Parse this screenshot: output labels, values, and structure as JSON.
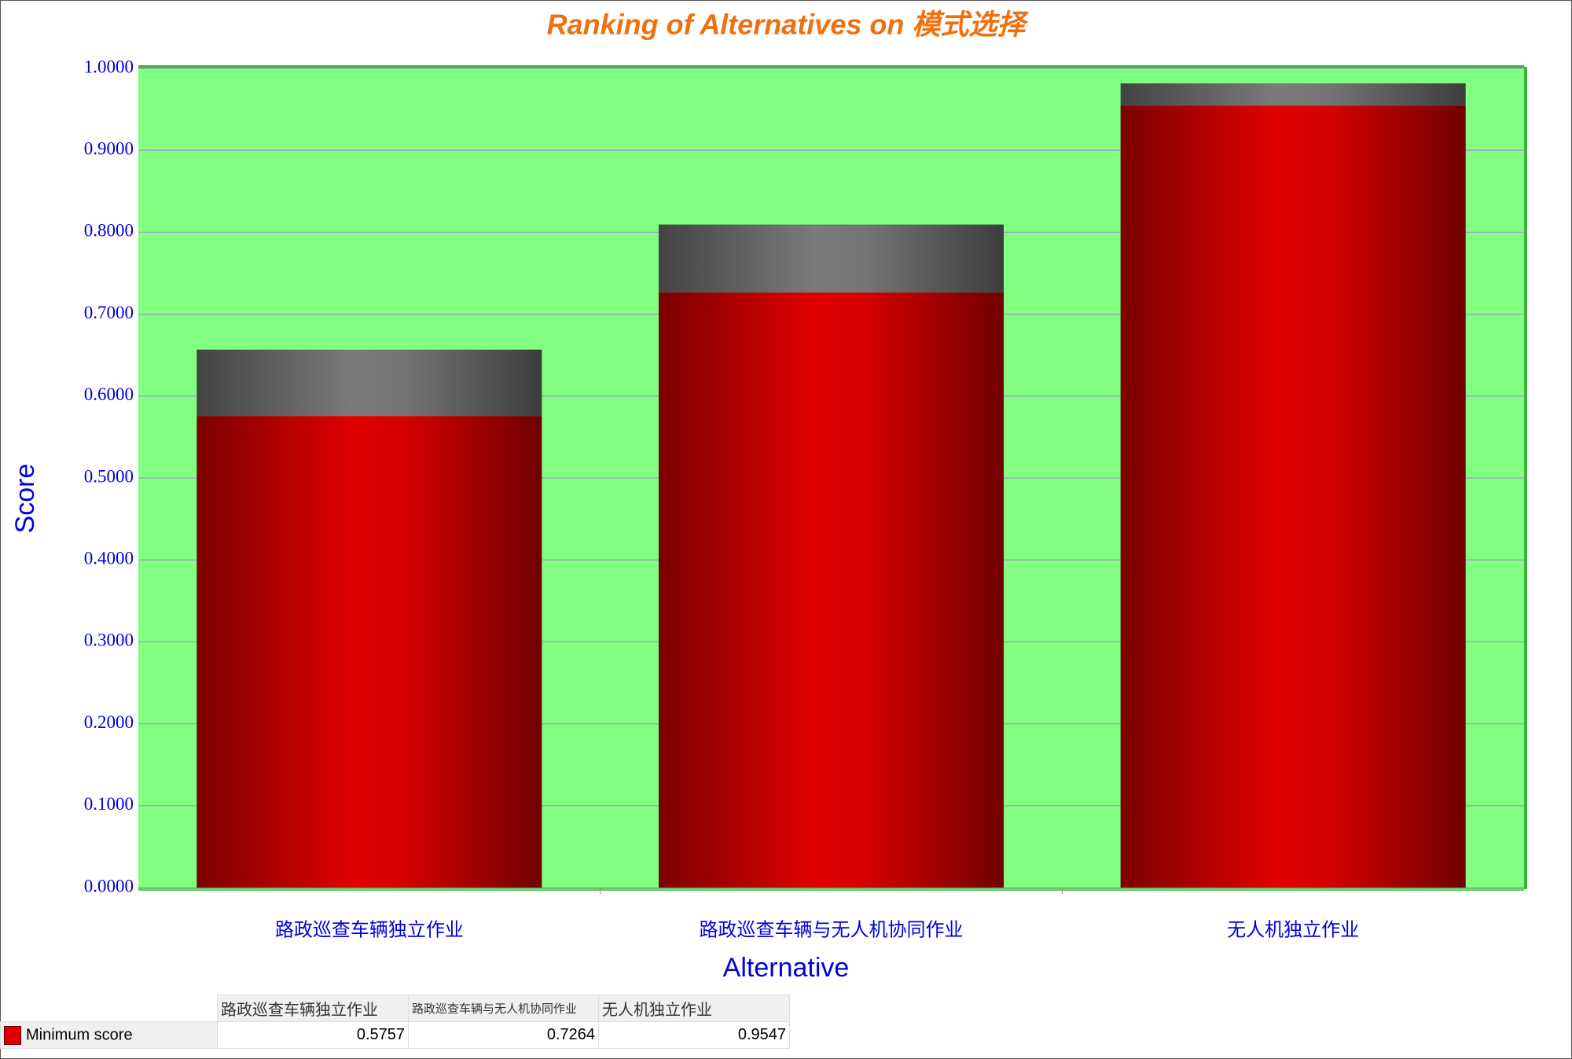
{
  "chart_data": {
    "type": "bar",
    "title": "Ranking of Alternatives on 模式选择",
    "x_label": "Alternative",
    "y_label": "Score",
    "categories": [
      "路政巡查车辆独立作业",
      "路政巡查车辆与无人机协同作业",
      "无人机独立作业"
    ],
    "series": [
      {
        "name": "Minimum score",
        "color": "#e00000",
        "values": [
          0.5757,
          0.7264,
          0.9547
        ]
      },
      {
        "color": "#7a7a7a",
        "values": [
          0.081,
          0.083,
          0.027
        ]
      }
    ],
    "ylim": [
      0,
      1
    ],
    "yticks": [
      {
        "value": 0,
        "label": "0.0000"
      },
      {
        "value": 0.1,
        "label": "0.1000"
      },
      {
        "value": 0.2,
        "label": "0.2000"
      },
      {
        "value": 0.3,
        "label": "0.3000"
      },
      {
        "value": 0.4,
        "label": "0.4000"
      },
      {
        "value": 0.5,
        "label": "0.5000"
      },
      {
        "value": 0.6,
        "label": "0.6000"
      },
      {
        "value": 0.7,
        "label": "0.7000"
      },
      {
        "value": 0.8,
        "label": "0.8000"
      },
      {
        "value": 0.9,
        "label": "0.9000"
      },
      {
        "value": 1,
        "label": "1.0000"
      }
    ],
    "grid": true,
    "background": "#80ff80"
  }
}
